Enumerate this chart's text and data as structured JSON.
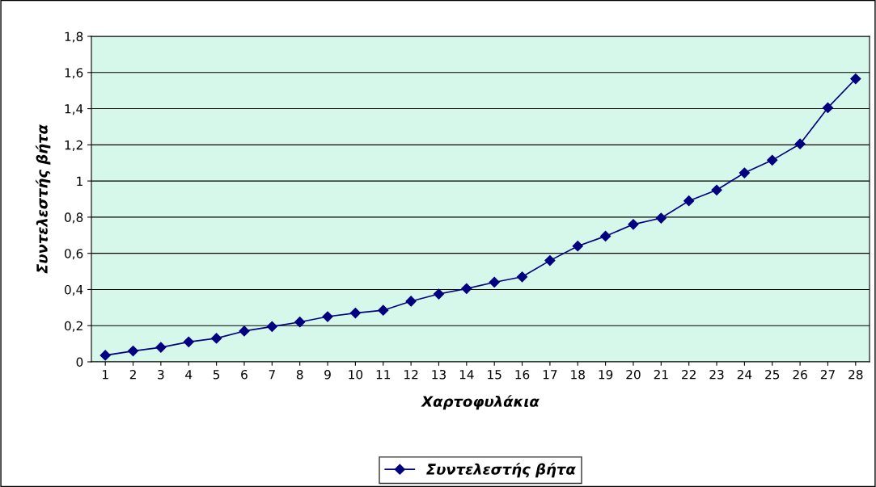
{
  "chart_data": {
    "type": "line",
    "xlabel": "Χαρτοφυλάκια",
    "ylabel": "Συντελεστής βήτα",
    "categories": [
      "1",
      "2",
      "3",
      "4",
      "5",
      "6",
      "7",
      "8",
      "9",
      "10",
      "11",
      "12",
      "13",
      "14",
      "15",
      "16",
      "17",
      "18",
      "19",
      "20",
      "21",
      "22",
      "23",
      "24",
      "25",
      "26",
      "27",
      "28"
    ],
    "series": [
      {
        "name": "Συντελεστής βήτα",
        "color": "#000080",
        "values": [
          0.036,
          0.06,
          0.08,
          0.11,
          0.13,
          0.17,
          0.195,
          0.22,
          0.25,
          0.27,
          0.285,
          0.335,
          0.375,
          0.405,
          0.44,
          0.47,
          0.56,
          0.64,
          0.695,
          0.76,
          0.795,
          0.89,
          0.95,
          1.045,
          1.115,
          1.205,
          1.405,
          1.565
        ]
      }
    ],
    "ylim": [
      0,
      1.8
    ],
    "yticks": [
      {
        "value": 0,
        "label": "0"
      },
      {
        "value": 0.2,
        "label": "0,2"
      },
      {
        "value": 0.4,
        "label": "0,4"
      },
      {
        "value": 0.6,
        "label": "0,6"
      },
      {
        "value": 0.8,
        "label": "0,8"
      },
      {
        "value": 1,
        "label": "1"
      },
      {
        "value": 1.2,
        "label": "1,2"
      },
      {
        "value": 1.4,
        "label": "1,4"
      },
      {
        "value": 1.6,
        "label": "1,6"
      },
      {
        "value": 1.8,
        "label": "1,8"
      }
    ],
    "grid": "y",
    "legend": "bottom",
    "marker": "diamond",
    "line_style": "solid"
  }
}
